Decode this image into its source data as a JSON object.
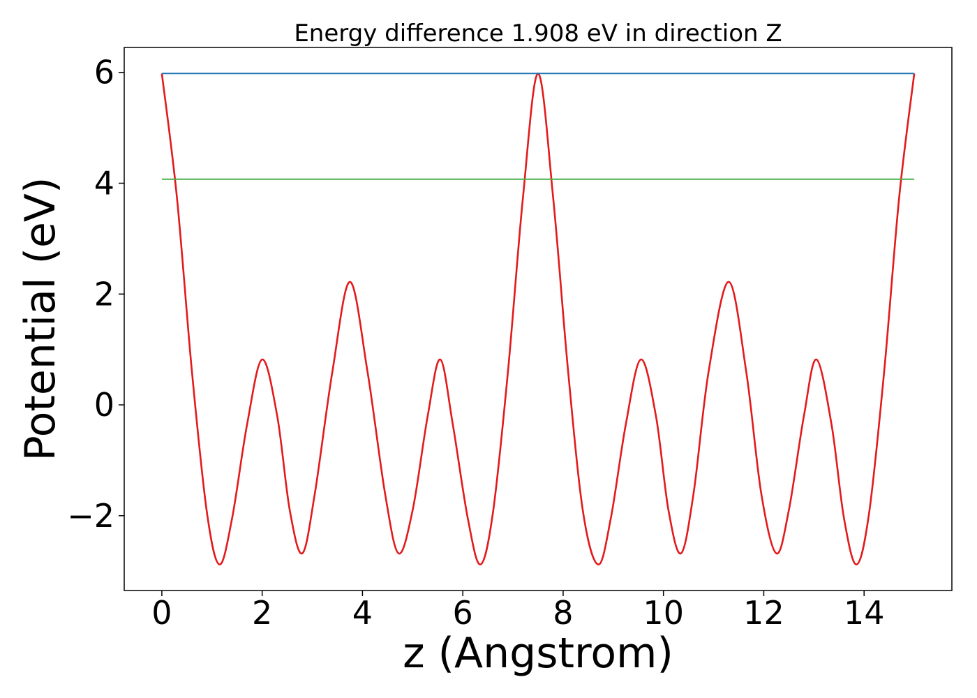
{
  "chart_data": {
    "type": "line",
    "title": "Energy difference 1.908 eV in direction Z",
    "xlabel": "z (Angstrom)",
    "ylabel": "Potential (eV)",
    "xlim": [
      -0.75,
      15.75
    ],
    "ylim": [
      -3.35,
      6.45
    ],
    "xticks": [
      0,
      2,
      4,
      6,
      8,
      10,
      12,
      14
    ],
    "xtick_labels": [
      "0",
      "2",
      "4",
      "6",
      "8",
      "10",
      "12",
      "14"
    ],
    "yticks": [
      -2,
      0,
      2,
      4,
      6
    ],
    "ytick_labels": [
      "−2",
      "0",
      "2",
      "4",
      "6"
    ],
    "grid": false,
    "series": [
      {
        "color": "#e31a1c",
        "x": [
          0.0,
          0.3,
          0.6,
          0.9,
          1.15,
          1.4,
          1.7,
          2.0,
          2.3,
          2.55,
          2.8,
          3.05,
          3.4,
          3.75,
          4.1,
          4.45,
          4.72,
          5.0,
          5.3,
          5.55,
          5.8,
          6.1,
          6.35,
          6.6,
          6.9,
          7.2,
          7.5,
          7.8,
          8.1,
          8.4,
          8.7,
          8.95,
          9.25,
          9.55,
          9.85,
          10.1,
          10.35,
          10.6,
          10.9,
          11.3,
          11.65,
          11.95,
          12.25,
          12.5,
          12.8,
          13.05,
          13.35,
          13.6,
          13.85,
          14.1,
          14.4,
          14.7,
          15.0
        ],
        "y": [
          5.98,
          3.75,
          0.6,
          -1.95,
          -2.88,
          -2.05,
          -0.35,
          0.82,
          -0.2,
          -1.9,
          -2.68,
          -1.6,
          0.6,
          2.22,
          0.6,
          -1.6,
          -2.68,
          -1.9,
          -0.2,
          0.82,
          -0.35,
          -2.05,
          -2.88,
          -1.95,
          0.6,
          3.75,
          5.98,
          3.75,
          0.6,
          -1.95,
          -2.88,
          -2.05,
          -0.35,
          0.82,
          -0.2,
          -1.9,
          -2.68,
          -1.6,
          0.6,
          2.22,
          0.6,
          -1.6,
          -2.68,
          -1.9,
          -0.2,
          0.82,
          -0.35,
          -2.05,
          -2.88,
          -1.95,
          0.6,
          3.75,
          5.98
        ]
      },
      {
        "color": "#1f77b4",
        "x": [
          0.0,
          15.0
        ],
        "y": [
          5.98,
          5.98
        ]
      },
      {
        "color": "#4daf4a",
        "x": [
          0.0,
          15.0
        ],
        "y": [
          4.072,
          4.072
        ]
      }
    ]
  }
}
